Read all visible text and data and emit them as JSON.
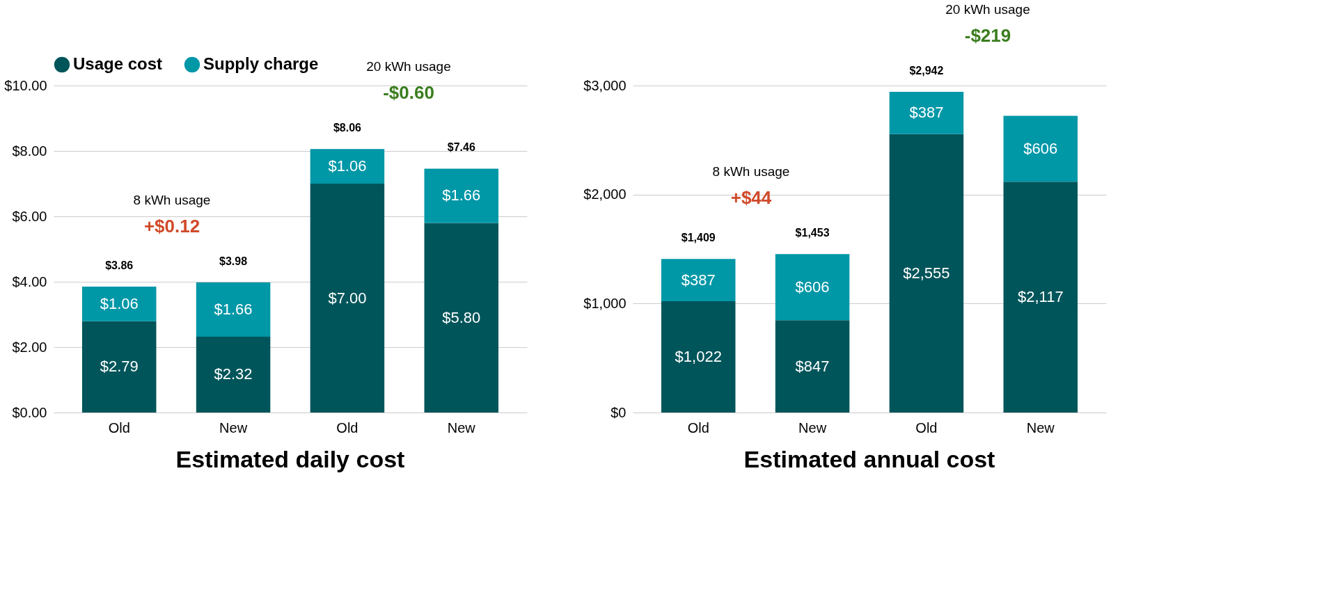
{
  "chart_data": [
    {
      "type": "bar",
      "stacked": true,
      "title": "Estimated daily cost",
      "categories": [
        "Old",
        "New",
        "Old",
        "New"
      ],
      "series": [
        {
          "name": "Usage cost",
          "color": "#00555a",
          "values": [
            2.79,
            2.32,
            7.0,
            5.8
          ],
          "value_labels": [
            "$2.79",
            "$2.32",
            "$7.00",
            "$5.80"
          ]
        },
        {
          "name": "Supply charge",
          "color": "#0097a7",
          "values": [
            1.06,
            1.66,
            1.06,
            1.66
          ],
          "value_labels": [
            "$1.06",
            "$1.66",
            "$1.06",
            "$1.66"
          ]
        }
      ],
      "totals": [
        "$3.86",
        "$3.98",
        "$8.06",
        "$7.46"
      ],
      "ylim": [
        0,
        10
      ],
      "yticks": [
        {
          "value": 0,
          "label": "$0.00"
        },
        {
          "value": 2,
          "label": "$2.00"
        },
        {
          "value": 4,
          "label": "$4.00"
        },
        {
          "value": 6,
          "label": "$6.00"
        },
        {
          "value": 8,
          "label": "$8.00"
        },
        {
          "value": 10,
          "label": "$10.00"
        }
      ],
      "grid": "y",
      "legend": "top left",
      "annotations": [
        "8 kWh usage",
        "+$0.12",
        "20 kWh usage",
        "-$0.60"
      ]
    },
    {
      "type": "bar",
      "stacked": true,
      "title": "Estimated annual cost",
      "categories": [
        "Old",
        "New",
        "Old",
        "New"
      ],
      "series": [
        {
          "color": "#00555a",
          "values": [
            1022,
            847,
            2555,
            2117
          ],
          "value_labels": [
            "$1,022",
            "$847",
            "$2,555",
            "$2,117"
          ]
        },
        {
          "color": "#0097a7",
          "values": [
            387,
            606,
            387,
            606
          ],
          "value_labels": [
            "$387",
            "$606",
            "$387",
            "$606"
          ]
        }
      ],
      "totals": [
        "$1,409",
        "$1,453",
        "$2,942",
        null
      ],
      "ylim": [
        0,
        3000
      ],
      "yticks": [
        {
          "value": 0,
          "label": "$0"
        },
        {
          "value": 1000,
          "label": "$1,000"
        },
        {
          "value": 2000,
          "label": "$2,000"
        },
        {
          "value": 3000,
          "label": "$3,000"
        }
      ],
      "grid": "y",
      "legend": false,
      "annotations": [
        "8 kWh usage",
        "+$44",
        "20 kWh usage",
        "-$219"
      ]
    }
  ]
}
